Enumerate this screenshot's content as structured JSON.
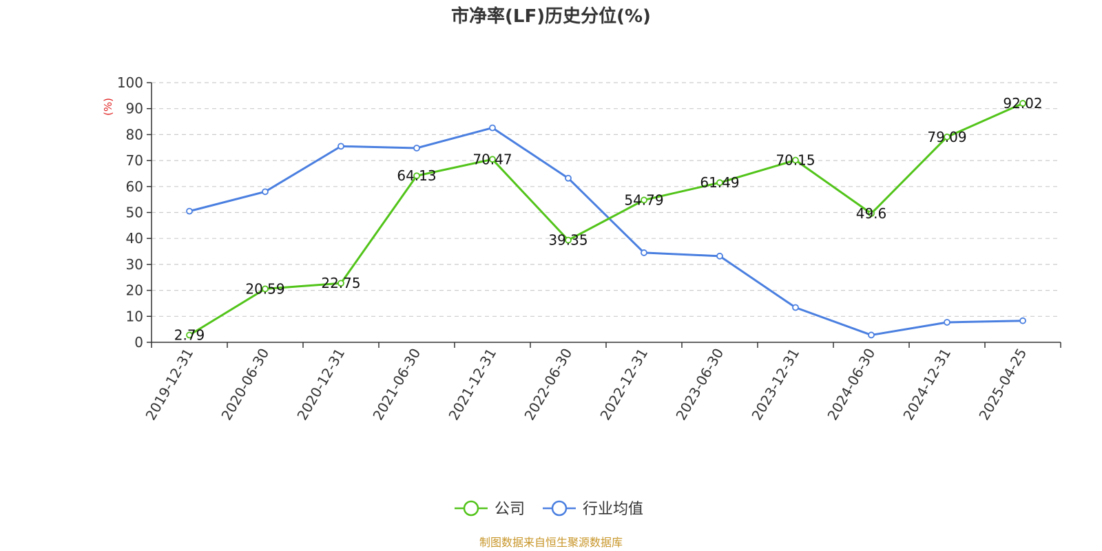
{
  "colors": {
    "company": "#52c41a",
    "industry": "#4a7fe0",
    "unit": "#e02020",
    "source": "#c8962a",
    "grid": "#cccccc",
    "axis": "#333333"
  },
  "chart_data": {
    "type": "line",
    "title": "市净率(LF)历史分位(%)",
    "ylabel": "(%)",
    "xlabel": "",
    "ylim": [
      0,
      100
    ],
    "yticks": [
      0,
      10,
      20,
      30,
      40,
      50,
      60,
      70,
      80,
      90,
      100
    ],
    "grid": true,
    "legend_position": "bottom-center",
    "categories": [
      "2019-12-31",
      "2020-06-30",
      "2020-12-31",
      "2021-06-30",
      "2021-12-31",
      "2022-06-30",
      "2022-12-31",
      "2023-06-30",
      "2023-12-31",
      "2024-06-30",
      "2024-12-31",
      "2025-04-25"
    ],
    "series": [
      {
        "name": "公司",
        "color": "#52c41a",
        "values": [
          2.79,
          20.59,
          22.75,
          64.13,
          70.47,
          39.35,
          54.79,
          61.49,
          70.15,
          49.6,
          79.09,
          92.02
        ],
        "show_labels": true
      },
      {
        "name": "行业均值",
        "color": "#4a7fe0",
        "values": [
          50.5,
          58,
          75.5,
          74.8,
          82.6,
          63.2,
          34.5,
          33.2,
          13.4,
          2.8,
          7.7,
          8.3
        ],
        "show_labels": false
      }
    ]
  },
  "source": "制图数据来自恒生聚源数据库"
}
